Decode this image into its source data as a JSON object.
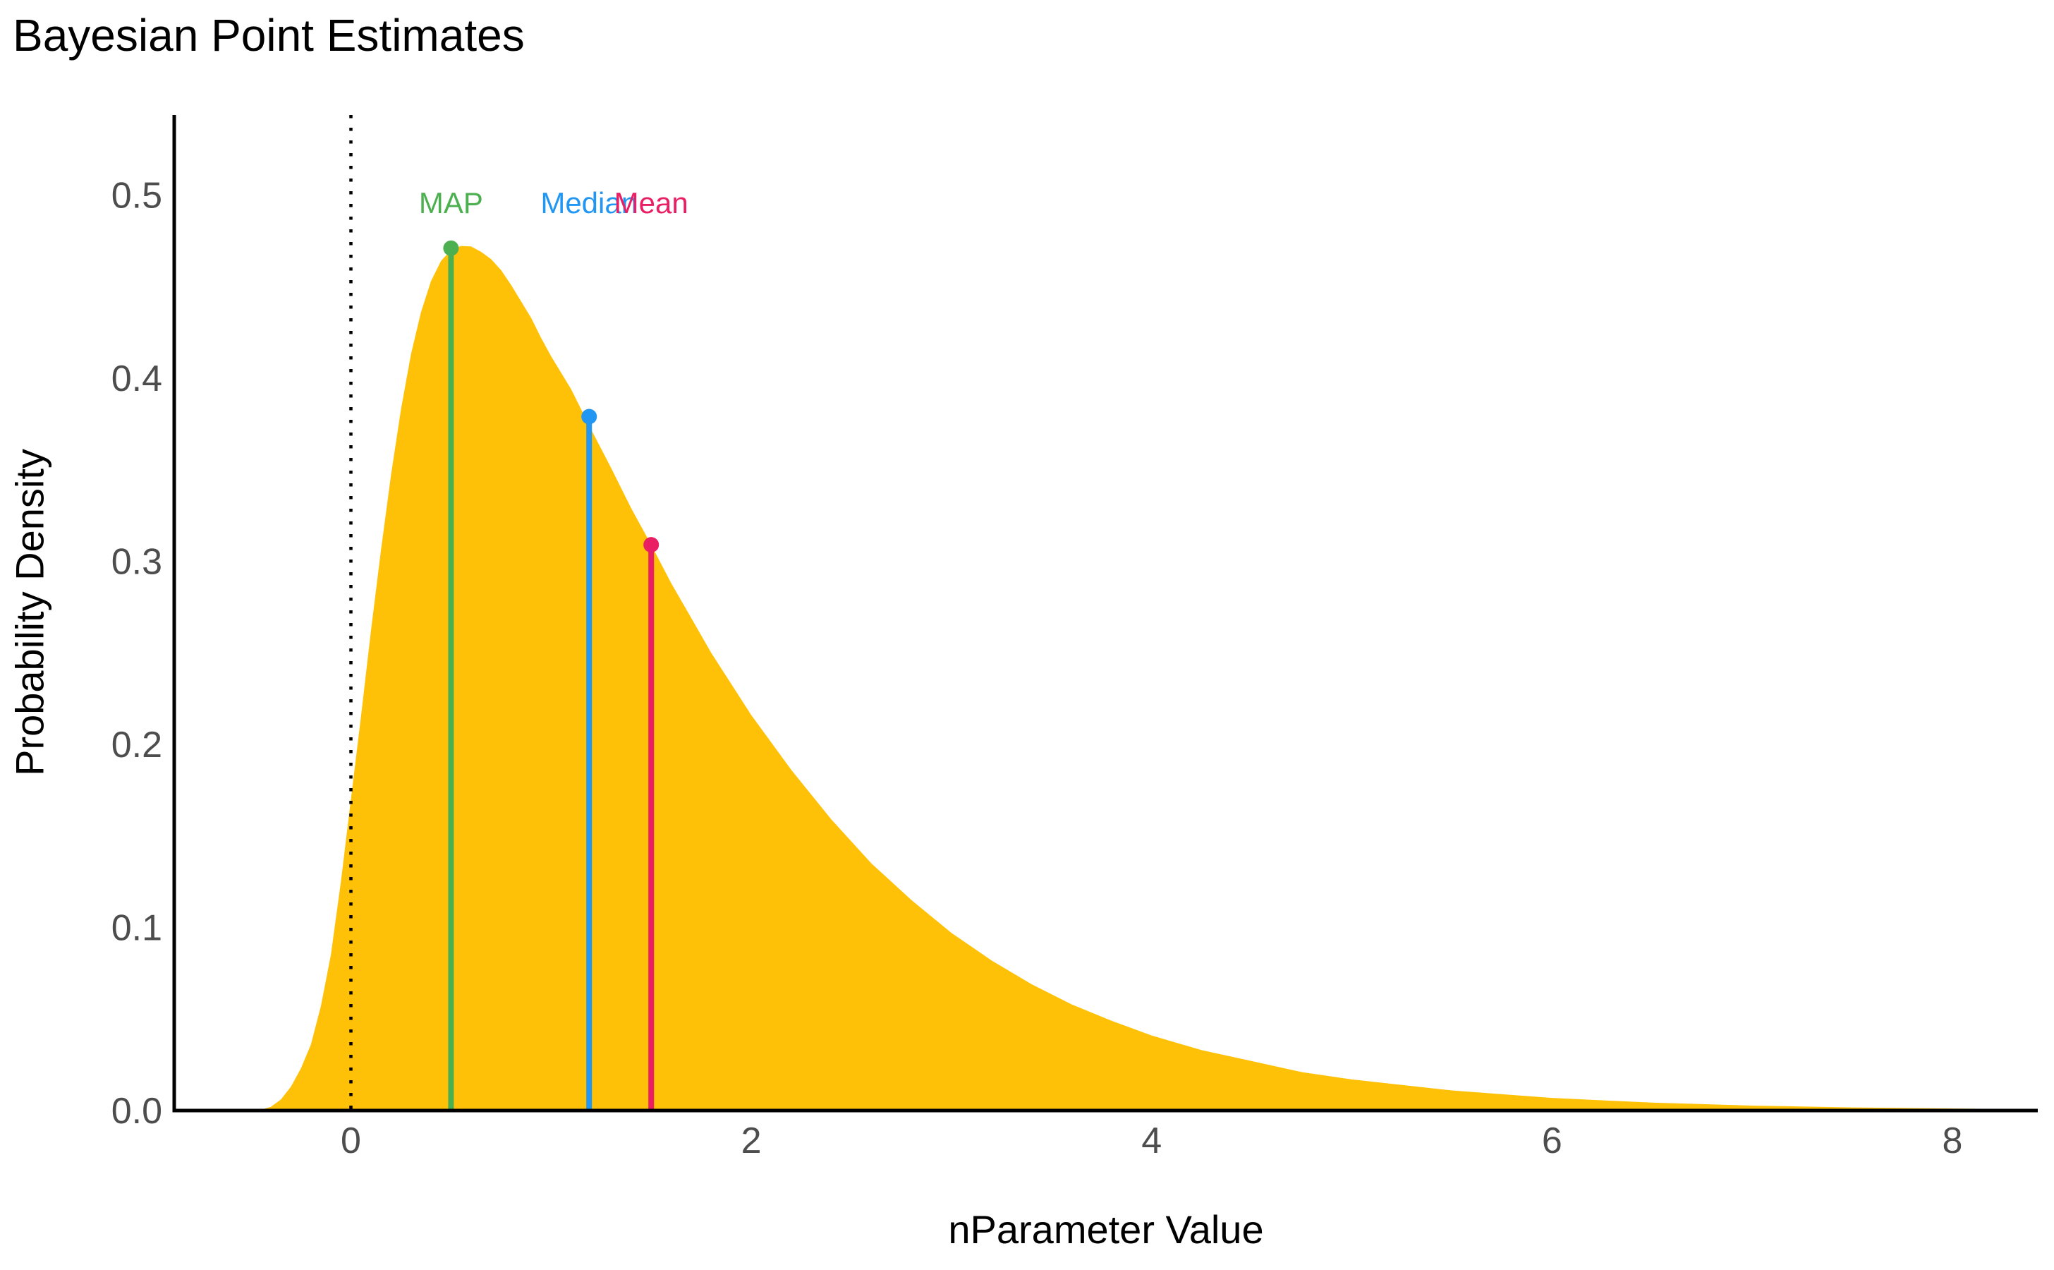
{
  "chart_data": {
    "type": "area",
    "title": "Bayesian Point Estimates",
    "xlabel": "nParameter Value",
    "ylabel": "Probability Density",
    "background_color": "#ffffff",
    "fill_color": "#FFC107",
    "axis_line_color": "#000000",
    "tick_label_color": "#4d4d4d",
    "legend": "none",
    "grid": false,
    "xlim": [
      -0.88,
      8.42
    ],
    "ylim": [
      0,
      0.544
    ],
    "x_ticks": [
      {
        "value": 0,
        "label": "0"
      },
      {
        "value": 2,
        "label": "2"
      },
      {
        "value": 4,
        "label": "4"
      },
      {
        "value": 6,
        "label": "6"
      },
      {
        "value": 8,
        "label": "8"
      }
    ],
    "y_ticks": [
      {
        "value": 0.0,
        "label": "0.0"
      },
      {
        "value": 0.1,
        "label": "0.1"
      },
      {
        "value": 0.2,
        "label": "0.2"
      },
      {
        "value": 0.3,
        "label": "0.3"
      },
      {
        "value": 0.4,
        "label": "0.4"
      },
      {
        "value": 0.5,
        "label": "0.5"
      }
    ],
    "reference_line": {
      "x": 0,
      "style": "dotted",
      "color": "#000000"
    },
    "curve": {
      "x": [
        -0.45,
        -0.4,
        -0.35,
        -0.3,
        -0.25,
        -0.2,
        -0.15,
        -0.1,
        -0.05,
        0.0,
        0.05,
        0.1,
        0.15,
        0.2,
        0.25,
        0.3,
        0.35,
        0.4,
        0.45,
        0.5,
        0.55,
        0.6,
        0.65,
        0.7,
        0.75,
        0.8,
        0.85,
        0.9,
        0.95,
        1.0,
        1.1,
        1.2,
        1.3,
        1.4,
        1.5,
        1.6,
        1.7,
        1.8,
        1.9,
        2.0,
        2.2,
        2.4,
        2.6,
        2.8,
        3.0,
        3.2,
        3.4,
        3.6,
        3.8,
        4.0,
        4.25,
        4.5,
        4.75,
        5.0,
        5.5,
        6.0,
        6.5,
        7.0,
        7.5,
        8.0,
        8.3
      ],
      "y": [
        0.0005,
        0.002,
        0.006,
        0.013,
        0.023,
        0.036,
        0.057,
        0.085,
        0.125,
        0.17,
        0.215,
        0.262,
        0.306,
        0.347,
        0.383,
        0.413,
        0.436,
        0.453,
        0.464,
        0.47,
        0.4722,
        0.472,
        0.469,
        0.465,
        0.459,
        0.451,
        0.442,
        0.433,
        0.422,
        0.412,
        0.394,
        0.372,
        0.351,
        0.329,
        0.309,
        0.288,
        0.269,
        0.25,
        0.233,
        0.216,
        0.186,
        0.159,
        0.135,
        0.115,
        0.097,
        0.082,
        0.069,
        0.058,
        0.049,
        0.041,
        0.033,
        0.027,
        0.021,
        0.017,
        0.011,
        0.0069,
        0.0043,
        0.0027,
        0.0017,
        0.0011,
        0.0008
      ]
    },
    "estimates": [
      {
        "label": "MAP",
        "x": 0.5,
        "density": 0.471,
        "color": "#4CAF50"
      },
      {
        "label": "Median",
        "x": 1.19,
        "density": 0.379,
        "color": "#2196F3"
      },
      {
        "label": "Mean",
        "x": 1.5,
        "density": 0.309,
        "color": "#E91E63"
      }
    ]
  }
}
